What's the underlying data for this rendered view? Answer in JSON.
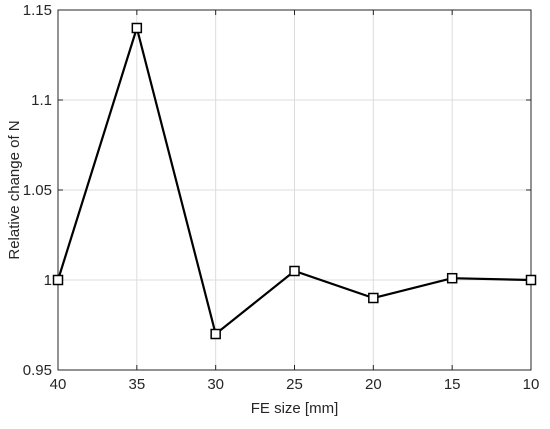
{
  "chart_data": {
    "type": "line",
    "title": "",
    "xlabel": "FE size [mm]",
    "ylabel": "Relative change of N",
    "x": [
      40,
      35,
      30,
      25,
      20,
      15,
      10
    ],
    "series": [
      {
        "values": [
          1.0,
          1.14,
          0.97,
          1.005,
          0.99,
          1.001,
          1.0
        ]
      }
    ],
    "x_ticks": [
      "40",
      "35",
      "30",
      "25",
      "20",
      "15",
      "10"
    ],
    "y_ticks": [
      "0.95",
      "1",
      "1.05",
      "1.1",
      "1.15"
    ],
    "x_reversed": true,
    "xlim": [
      40,
      10
    ],
    "ylim": [
      0.95,
      1.15
    ],
    "grid": true,
    "legend": "none",
    "marker": "square-open",
    "colors": {
      "line": "#000000",
      "grid": "#dcdcdc",
      "axes": "#262626",
      "text": "#262626"
    }
  }
}
